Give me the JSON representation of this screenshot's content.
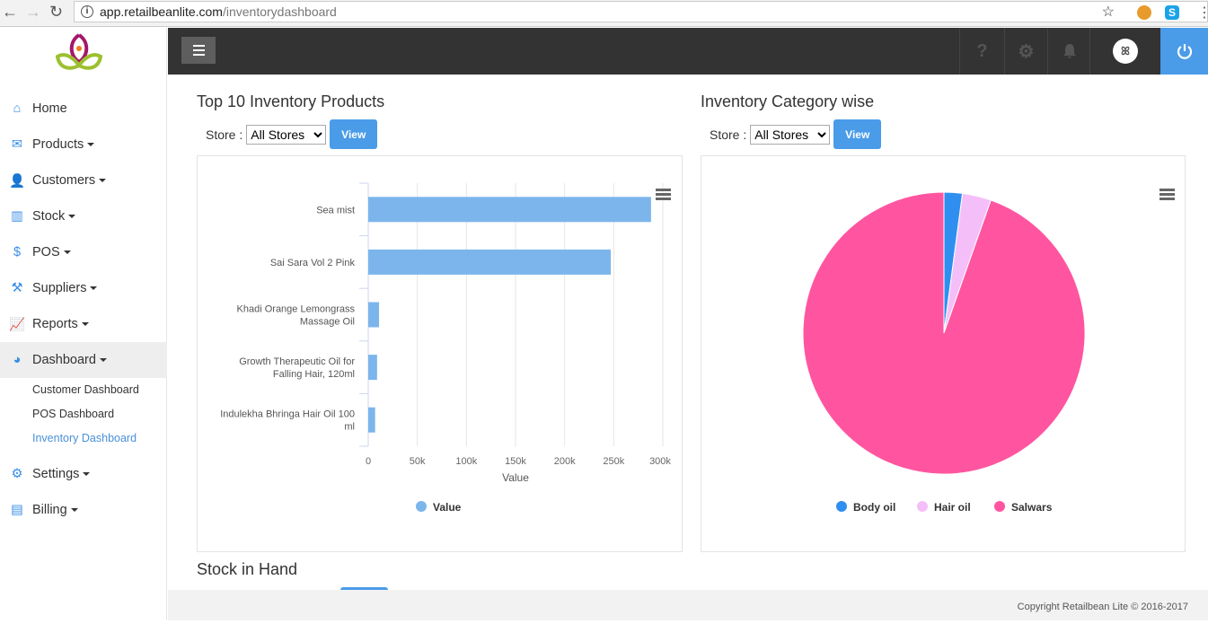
{
  "browser": {
    "url_host": "app.retailbeanlite.com",
    "url_path": "/inventorydashboard"
  },
  "sidebar": {
    "items": [
      {
        "label": "Home",
        "icon": "home-icon",
        "caret": false
      },
      {
        "label": "Products",
        "icon": "envelope-icon",
        "caret": true
      },
      {
        "label": "Customers",
        "icon": "user-icon",
        "caret": true
      },
      {
        "label": "Stock",
        "icon": "stock-icon",
        "caret": true
      },
      {
        "label": "POS",
        "icon": "pos-icon",
        "caret": true
      },
      {
        "label": "Suppliers",
        "icon": "supplier-icon",
        "caret": true
      },
      {
        "label": "Reports",
        "icon": "chart-line-icon",
        "caret": true
      },
      {
        "label": "Dashboard",
        "icon": "pie-chart-icon",
        "caret": true,
        "active": true
      }
    ],
    "dashboard_sub": [
      "Customer Dashboard",
      "POS Dashboard",
      "Inventory Dashboard"
    ],
    "items2": [
      {
        "label": "Settings",
        "icon": "gear-icon"
      },
      {
        "label": "Billing",
        "icon": "billing-icon"
      }
    ]
  },
  "topnav": {
    "help": "?"
  },
  "section1": {
    "title": "Top 10 Inventory Products",
    "store_label": "Store :",
    "store_value": "All Stores",
    "view": "View"
  },
  "section2": {
    "title": "Inventory Category wise",
    "store_label": "Store :",
    "store_value": "All Stores",
    "view": "View"
  },
  "section3": {
    "title": "Stock in Hand"
  },
  "footer": "Copyright Retailbean Lite © 2016-2017",
  "chart_data": [
    {
      "type": "bar",
      "orientation": "horizontal",
      "categories": [
        "Sea mist",
        "Sai Sara Vol 2 Pink",
        "Khadi Orange Lemongrass Massage Oil",
        "Growth Therapeutic Oil for Falling Hair, 120ml",
        "Indulekha Bhringa Hair Oil 100 ml"
      ],
      "category_lines": [
        [
          "Sea mist"
        ],
        [
          "Sai Sara Vol 2 Pink"
        ],
        [
          "Khadi Orange Lemongrass",
          "Massage Oil"
        ],
        [
          "Growth Therapeutic Oil for",
          "Falling Hair, 120ml"
        ],
        [
          "Indulekha Bhringa Hair Oil 100",
          "ml"
        ]
      ],
      "series": [
        {
          "name": "Value",
          "values": [
            288000,
            247000,
            11000,
            9000,
            7000
          ],
          "color": "#7cb5ec"
        }
      ],
      "xlabel": "Value",
      "xlim": [
        0,
        300000
      ],
      "ticks": [
        "0",
        "50k",
        "100k",
        "150k",
        "200k",
        "250k",
        "300k"
      ],
      "legend": "bottom"
    },
    {
      "type": "pie",
      "slices": [
        {
          "name": "Body oil",
          "value": 2.1,
          "color": "#2f8ff0"
        },
        {
          "name": "Hair oil",
          "value": 3.3,
          "color": "#f4bff8"
        },
        {
          "name": "Salwars",
          "value": 94.6,
          "color": "#ff55a0"
        }
      ],
      "legend": "bottom"
    }
  ]
}
